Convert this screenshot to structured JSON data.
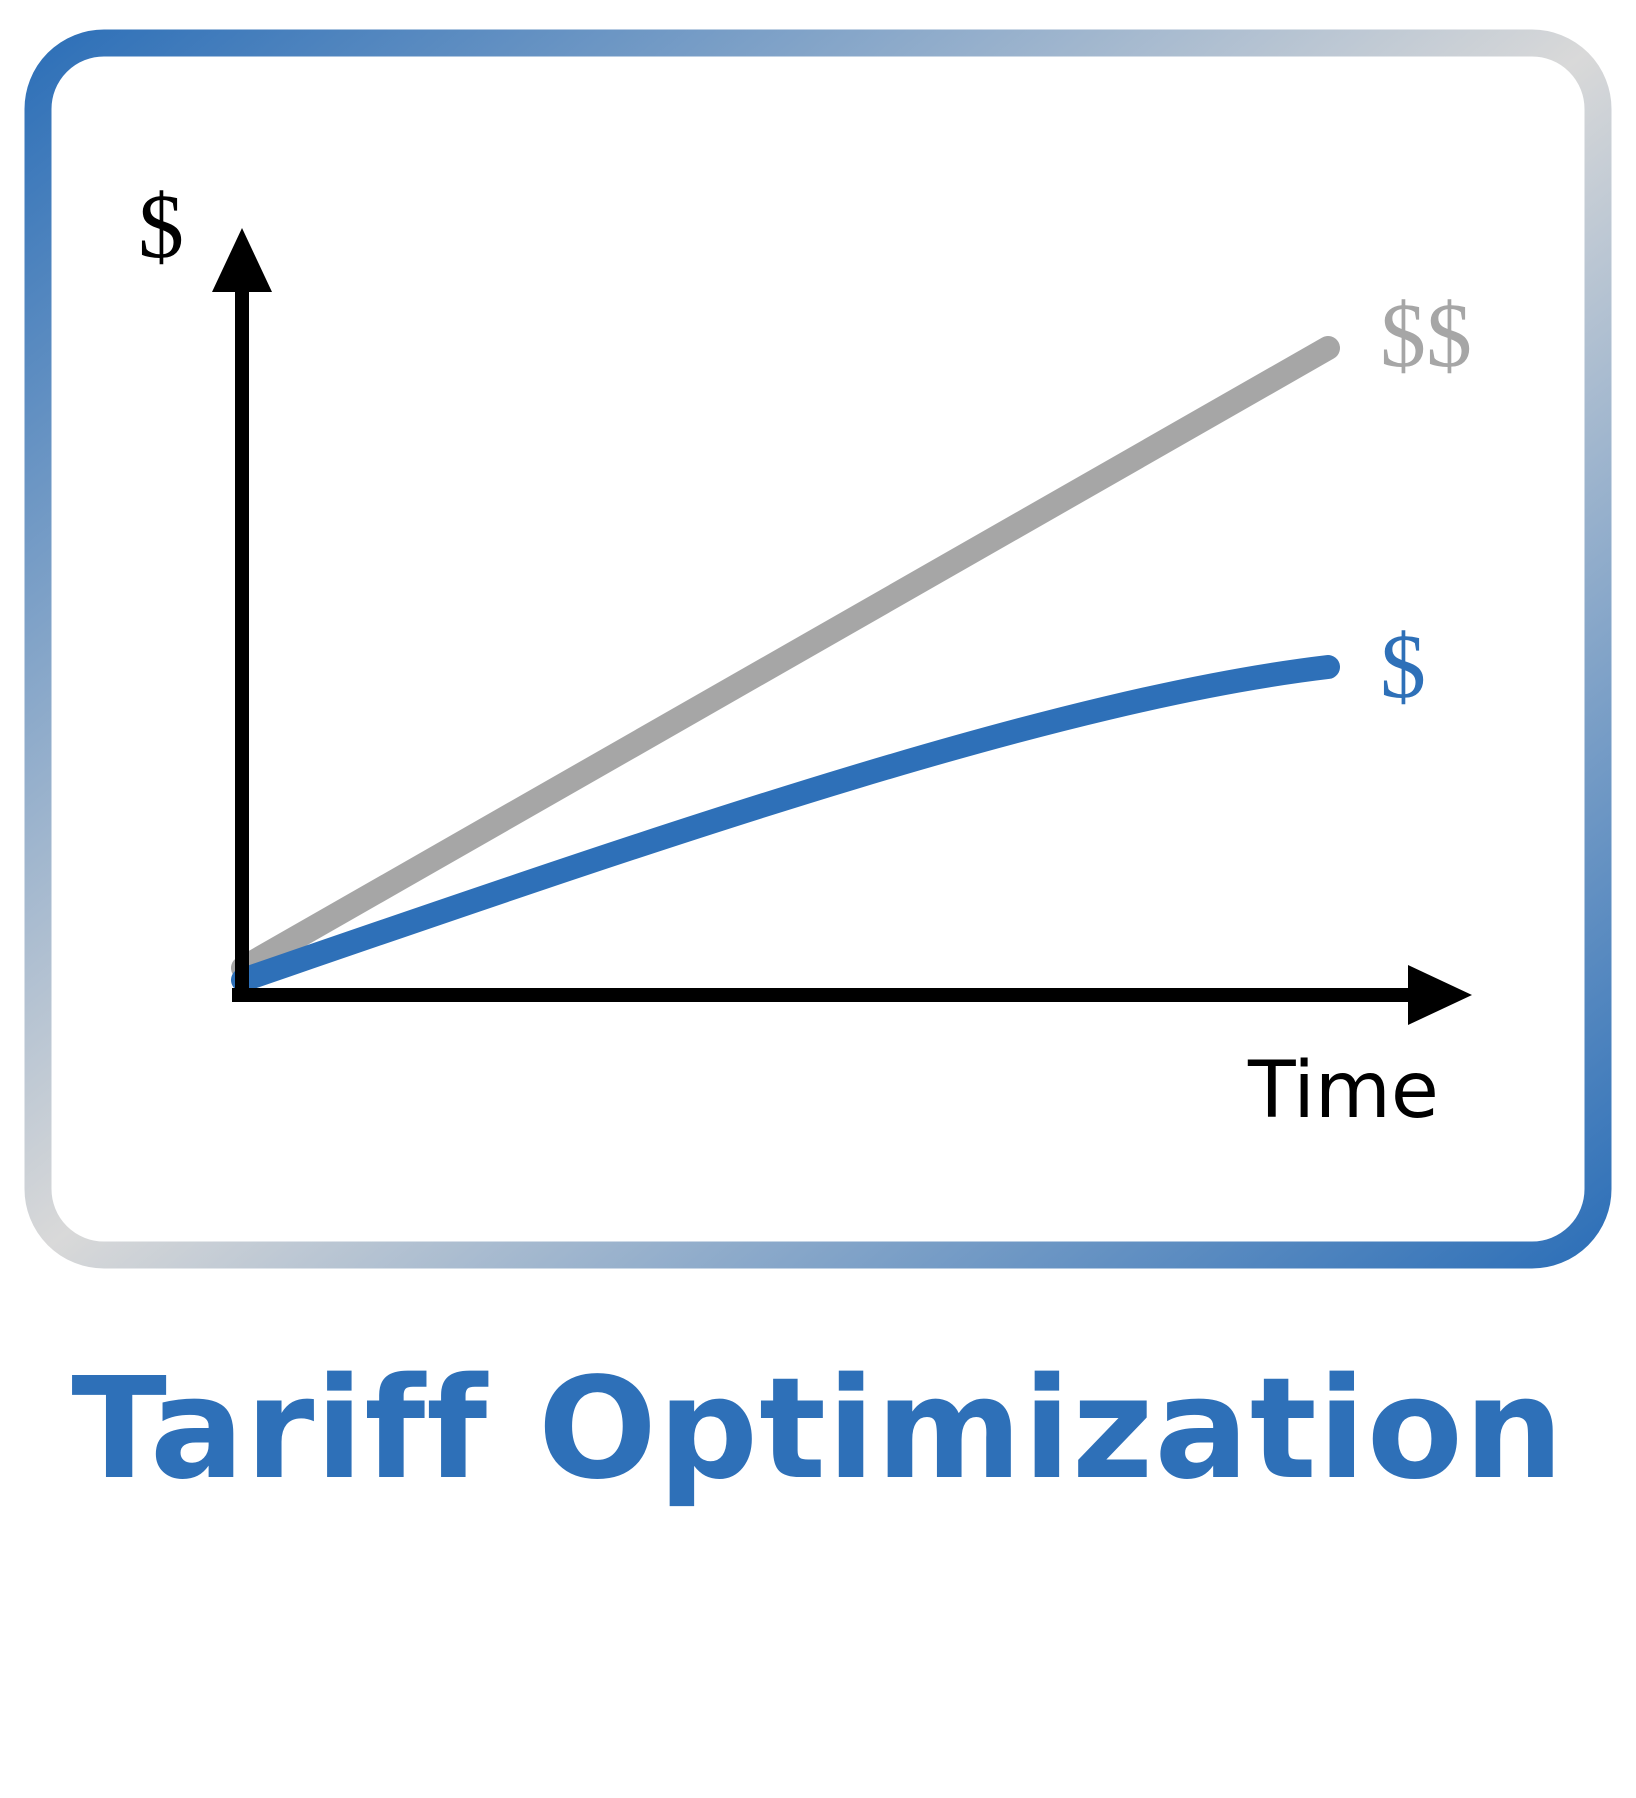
{
  "title": "Tariff Optimization",
  "diagram": {
    "y_axis_label": "$",
    "x_axis_label": "Time",
    "series": [
      {
        "label": "$$",
        "color": "#a6a6a6",
        "shape": "linear"
      },
      {
        "label": "$",
        "color": "#2e70b8",
        "shape": "decelerating-curve"
      }
    ]
  },
  "colors": {
    "accent": "#2e70b8",
    "gray": "#a6a6a6",
    "frame_light": "#d9d9d9",
    "axis": "#000000"
  }
}
